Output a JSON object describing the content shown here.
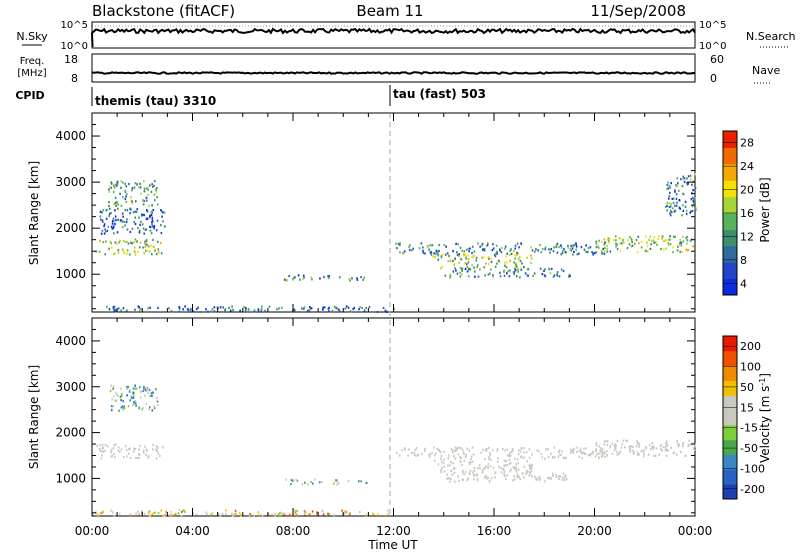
{
  "header": {
    "station": "Blackstone (fitACF)",
    "beam": "Beam 11",
    "date": "11/Sep/2008"
  },
  "strips": {
    "nsky_label": "N.Sky",
    "nsky_ticks": [
      "10^5",
      "10^0"
    ],
    "nsearch_label": "N.Search",
    "nsearch_ticks": [
      "10^5",
      "10^0"
    ],
    "freq_label": "Freq.",
    "freq_unit": "[MHz]",
    "freq_ticks": [
      "18",
      "8"
    ],
    "nave_label": "Nave",
    "nave_ticks": [
      "60",
      "0"
    ],
    "cpid_label": "CPID",
    "cpid_modes": [
      {
        "name": "themis (tau) 3310",
        "start_hour": 0
      },
      {
        "name": "tau (fast) 503",
        "start_hour": 12
      }
    ]
  },
  "xaxis": {
    "label": "Time UT",
    "ticks": [
      "00:00",
      "04:00",
      "08:00",
      "12:00",
      "16:00",
      "20:00",
      "00:00"
    ]
  },
  "chart_data": [
    {
      "type": "heatmap",
      "name": "power",
      "ylabel": "Slant Range [km]",
      "yticks": [
        "4000",
        "3000",
        "2000",
        "1000"
      ],
      "x_range_hours": [
        0,
        24
      ],
      "ylim_km": [
        180,
        4500
      ],
      "colorbar_label": "Power [dB]",
      "colorbar_ticks": [
        "28",
        "24",
        "20",
        "16",
        "12",
        "8",
        "4"
      ],
      "colorbar_range": [
        0,
        30
      ],
      "colorscale": [
        "#0a2be0",
        "#2244c8",
        "#2e6a9c",
        "#3f8f6e",
        "#55b35a",
        "#a7d43a",
        "#f5e000",
        "#f5a800",
        "#f06a00",
        "#e82200"
      ],
      "echo_regions": [
        {
          "t0": 0.1,
          "t1": 2.8,
          "r0": 1450,
          "r1": 1780,
          "level": 0.55
        },
        {
          "t0": 0.6,
          "t1": 2.6,
          "r0": 2500,
          "r1": 3050,
          "level": 0.4
        },
        {
          "t0": 0.3,
          "t1": 2.9,
          "r0": 1900,
          "r1": 2450,
          "level": 0.2
        },
        {
          "t0": 7.6,
          "t1": 10.9,
          "r0": 880,
          "r1": 1000,
          "level": 0.3
        },
        {
          "t0": 0.0,
          "t1": 12.0,
          "r0": 200,
          "r1": 330,
          "level": 0.25
        },
        {
          "t0": 12.0,
          "t1": 20.5,
          "r0": 1450,
          "r1": 1700,
          "level": 0.3
        },
        {
          "t0": 13.5,
          "t1": 17.5,
          "r0": 1150,
          "r1": 1450,
          "level": 0.5
        },
        {
          "t0": 14.0,
          "t1": 19.0,
          "r0": 950,
          "r1": 1150,
          "level": 0.3
        },
        {
          "t0": 20.0,
          "t1": 24.0,
          "r0": 1500,
          "r1": 1850,
          "level": 0.5
        },
        {
          "t0": 22.8,
          "t1": 24.0,
          "r0": 2300,
          "r1": 3200,
          "level": 0.3
        }
      ]
    },
    {
      "type": "heatmap",
      "name": "velocity",
      "ylabel": "Slant Range [km]",
      "yticks": [
        "4000",
        "3000",
        "2000",
        "1000"
      ],
      "x_range_hours": [
        0,
        24
      ],
      "ylim_km": [
        180,
        4500
      ],
      "colorbar_label": "Velocity [m s^-1]",
      "colorbar_ticks": [
        "200",
        "100",
        "50",
        "15",
        "-15",
        "-50",
        "-100",
        "-200"
      ],
      "colorbar_range": [
        -250,
        250
      ],
      "colorscale": [
        "#1e3fb4",
        "#2a62c4",
        "#3a86c6",
        "#4aa84a",
        "#7ccf3a",
        "#c8c8c0",
        "#c8c8c0",
        "#f0c000",
        "#f08a00",
        "#f05000",
        "#e81a00"
      ],
      "echo_regions": [
        {
          "t0": 0.1,
          "t1": 2.8,
          "r0": 1450,
          "r1": 1780,
          "level": 0.5
        },
        {
          "t0": 0.6,
          "t1": 2.6,
          "r0": 2500,
          "r1": 3050,
          "level": 0.35
        },
        {
          "t0": 7.6,
          "t1": 10.9,
          "r0": 880,
          "r1": 1000,
          "level": 0.4
        },
        {
          "t0": 0.0,
          "t1": 12.0,
          "r0": 200,
          "r1": 330,
          "level": 0.62
        },
        {
          "t0": 12.0,
          "t1": 20.5,
          "r0": 1450,
          "r1": 1700,
          "level": 0.5
        },
        {
          "t0": 13.5,
          "t1": 17.5,
          "r0": 1150,
          "r1": 1450,
          "level": 0.5
        },
        {
          "t0": 14.0,
          "t1": 19.0,
          "r0": 950,
          "r1": 1150,
          "level": 0.5
        },
        {
          "t0": 20.0,
          "t1": 24.0,
          "r0": 1500,
          "r1": 1850,
          "level": 0.5
        }
      ]
    }
  ]
}
